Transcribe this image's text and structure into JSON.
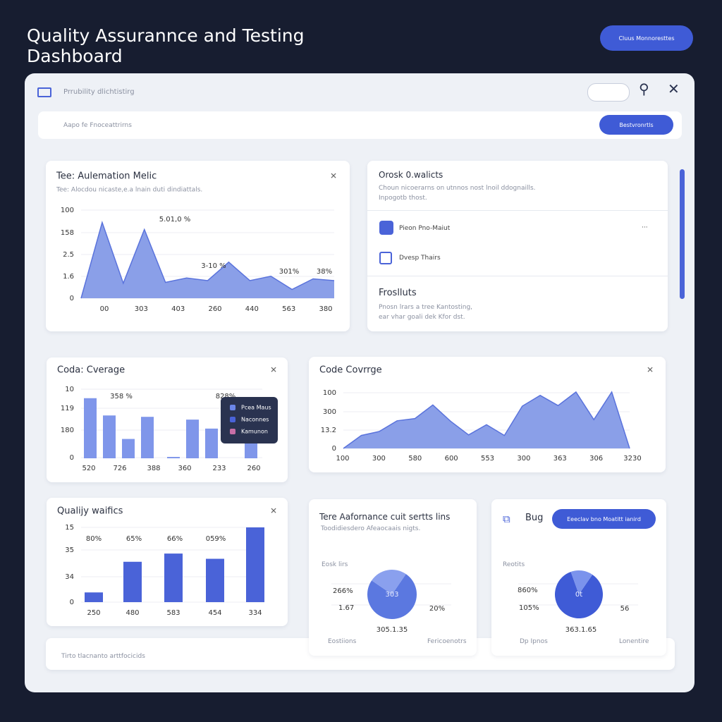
{
  "header": {
    "title": "Quality Assurannce and Testing Dashboard",
    "button": "Cluus Monnoresttes"
  },
  "toolbar": {
    "label": "Prrubility dlichtistirg",
    "search_placeholder": "Aapo fe Fnoceattrirns",
    "search_button": "Bestvronrtls"
  },
  "charts": [
    {
      "type": "area",
      "title": "Tee: Aulemation Melic",
      "subtitle": "Tee: Alocdou nicaste,e.a lnain duti dindiattals.",
      "y_labels": [
        "100",
        "158",
        "2.5",
        "1.6",
        "0"
      ],
      "x_labels": [
        "00",
        "303",
        "403",
        "260",
        "440",
        "563",
        "380"
      ],
      "values": [
        0,
        86,
        17,
        78,
        18,
        23,
        20,
        41,
        20,
        25,
        10,
        22,
        20
      ],
      "ylim": [
        0,
        100
      ],
      "color": "#8a9fe8",
      "annotations": [
        "5.01,0 %",
        "3-10 %",
        "301%",
        "38%"
      ]
    },
    {
      "type": "bar",
      "title": "Coda: Cverage",
      "y_labels": [
        "10",
        "119",
        "180",
        "0"
      ],
      "x_labels": [
        "520",
        "726",
        "388",
        "360",
        "233",
        "260"
      ],
      "values": [
        87,
        62,
        28,
        60,
        2,
        56,
        43,
        22
      ],
      "ylim": [
        0,
        100
      ],
      "color": "#7f96ea",
      "annotations": [
        "358 %",
        "828%"
      ],
      "tooltip": [
        "Pcea Maus",
        "Naconnes",
        "Kamunon"
      ]
    },
    {
      "type": "area",
      "title": "Code Covrrge",
      "y_labels": [
        "100",
        "300",
        "13.2",
        "0"
      ],
      "x_labels": [
        "100",
        "300",
        "580",
        "600",
        "553",
        "300",
        "363",
        "306",
        "3230"
      ],
      "values": [
        0,
        23,
        30,
        49,
        53,
        77,
        48,
        24,
        42,
        23,
        75,
        94,
        76,
        100,
        51,
        100,
        0
      ],
      "ylim": [
        0,
        120
      ],
      "color": "#8a9fe8",
      "annotations": []
    },
    {
      "type": "bar",
      "title": "Qualijy waifics",
      "y_labels": [
        "15",
        "35",
        "34",
        "0"
      ],
      "x_labels": [
        "250",
        "480",
        "583",
        "454",
        "334"
      ],
      "values": [
        13,
        54,
        65,
        58,
        100
      ],
      "ylim": [
        0,
        100
      ],
      "color": "#4a63d8",
      "annotations": [
        "80%",
        "65%",
        "66%",
        "059%"
      ]
    }
  ],
  "list_panel": {
    "title": "Orosk 0.walicts",
    "description": [
      "Choun nicoerarns on utnnos nost lnoil ddognaills.",
      "Inpogotb thost."
    ],
    "items": [
      "Pieon Pno-Maiut",
      "Dvesp Thairs"
    ],
    "section": "Froslluts",
    "section_text": [
      "Pnosn lrars a tree Kantosting,",
      "ear vhar goali dek Kfor dst."
    ]
  },
  "pie_panels": [
    {
      "title": "Tere Aafornance cuit sertts lins",
      "subtitle": "Toodidiesdero Afeaocaais nigts.",
      "section": "Eosk lirs",
      "labels": [
        "266%",
        "1.67",
        "303",
        "20%",
        "305.1.35"
      ],
      "footer": [
        "Eostiions",
        "Fericoenotrs"
      ],
      "slices": [
        75,
        25
      ],
      "colors": [
        "#5b78e0",
        "#8aa0ee"
      ]
    },
    {
      "title": "Bug",
      "button": "Eeeclav bno Moatitt ianird",
      "section": "Reotits",
      "labels": [
        "860%",
        "105%",
        "0t",
        "56",
        "363.1.65"
      ],
      "footer": [
        "Dp Ipnos",
        "Lonentire"
      ],
      "slices": [
        85,
        15
      ],
      "colors": [
        "#3f5bd6",
        "#7b93ec"
      ]
    }
  ],
  "footer_strip": "Tirto tlacnanto arttfocicids"
}
